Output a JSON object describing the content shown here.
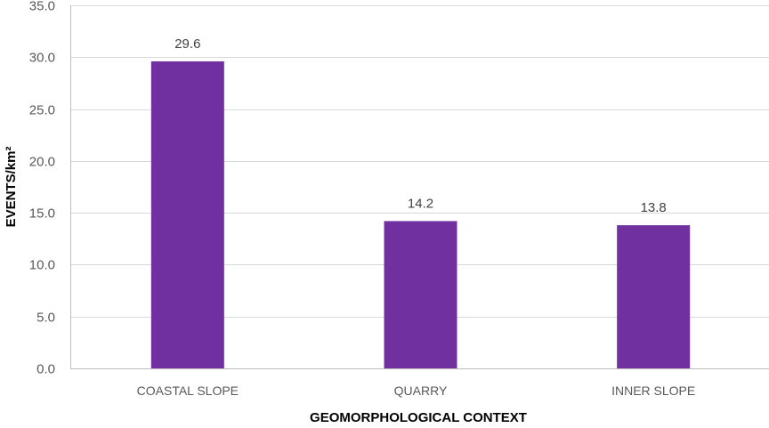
{
  "chart_data": {
    "type": "bar",
    "categories": [
      "COASTAL SLOPE",
      "QUARRY",
      "INNER SLOPE"
    ],
    "values": [
      29.6,
      14.2,
      13.8
    ],
    "data_labels": [
      "29.6",
      "14.2",
      "13.8"
    ],
    "xlabel": "GEOMORPHOLOGICAL CONTEXT",
    "ylabel": "EVENTS/km²",
    "ylim": [
      0,
      35
    ],
    "yticks": [
      0,
      5,
      10,
      15,
      20,
      25,
      30,
      35
    ],
    "ytick_labels": [
      "0.0",
      "5.0",
      "10.0",
      "15.0",
      "20.0",
      "25.0",
      "30.0",
      "35.0"
    ],
    "grid": true,
    "legend": "none",
    "colors": {
      "bar": "#7030a0",
      "grid": "#d9d9d9",
      "axis": "#bfbfbf",
      "tick_text": "#595959",
      "label_text": "#404040",
      "title_text": "#000000"
    }
  }
}
